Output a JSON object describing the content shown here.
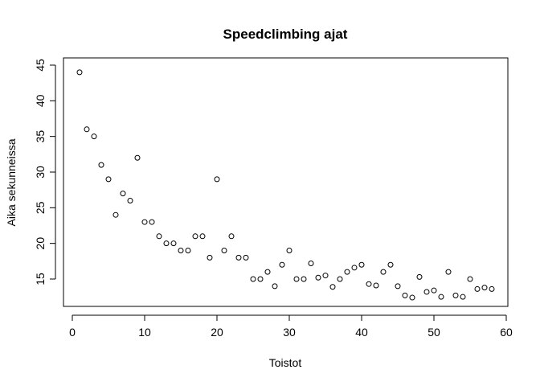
{
  "chart_data": {
    "type": "scatter",
    "title": "Speedclimbing ajat",
    "xlabel": "Toistot",
    "ylabel": "Aika sekunneissa",
    "xlim": [
      0,
      60
    ],
    "ylim": [
      12,
      45
    ],
    "xticks": [
      0,
      10,
      20,
      30,
      40,
      50,
      60
    ],
    "yticks": [
      15,
      20,
      25,
      30,
      35,
      40,
      45
    ],
    "grid": false,
    "legend": "none",
    "marker": "open-circle",
    "series": [
      {
        "x": [
          1,
          2,
          3,
          4,
          5,
          6,
          7,
          8,
          9,
          10,
          11,
          12,
          13,
          14,
          15,
          16,
          17,
          18,
          19,
          20,
          21,
          22,
          23,
          24,
          25,
          26,
          27,
          28,
          29,
          30,
          31,
          32,
          33,
          34,
          35,
          36,
          37,
          38,
          39,
          40,
          41,
          42,
          43,
          44,
          45,
          46,
          47,
          48,
          49,
          50,
          51,
          52,
          53,
          54,
          55,
          56,
          57,
          58
        ],
        "y": [
          44,
          36,
          35,
          31,
          29,
          24,
          27,
          26,
          32,
          23,
          23,
          21,
          20,
          20,
          19,
          19,
          21,
          21,
          18,
          29,
          19,
          21,
          18,
          18,
          15,
          15,
          16,
          14,
          17,
          19,
          15,
          15,
          17.2,
          15.2,
          15.5,
          13.9,
          15,
          16,
          16.6,
          17,
          14.3,
          14.1,
          16,
          17,
          14,
          12.7,
          12.4,
          15.3,
          13.2,
          13.4,
          12.5,
          16,
          12.7,
          12.5,
          15,
          13.6,
          13.8,
          13.6
        ]
      }
    ]
  }
}
